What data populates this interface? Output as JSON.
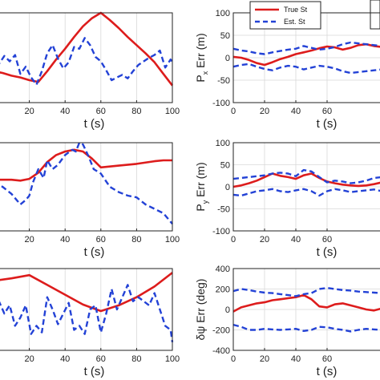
{
  "chart_data": [
    {
      "type": "line",
      "panel": "left-top",
      "xlabel": "t (s)",
      "ylabel": "",
      "xlim": [
        0,
        100
      ],
      "ylim": [
        0,
        10
      ],
      "xticks": [
        20,
        40,
        60,
        80,
        100
      ],
      "grid": true,
      "legend_position": "top-right",
      "series": [
        {
          "name": "True St",
          "color": "#dd1c1c",
          "style": "solid",
          "x": [
            0,
            5,
            10,
            15,
            20,
            25,
            30,
            35,
            40,
            45,
            50,
            55,
            60,
            65,
            70,
            75,
            80,
            85,
            90,
            95,
            100
          ],
          "y": [
            3.5,
            3.3,
            3.0,
            2.8,
            2.5,
            2.3,
            3.5,
            4.8,
            6.0,
            7.3,
            8.5,
            9.4,
            10.0,
            9.2,
            8.3,
            7.3,
            6.4,
            5.5,
            4.5,
            3.2,
            1.9
          ]
        },
        {
          "name": "Est. St",
          "color": "#2342d6",
          "style": "dashed",
          "x": [
            0,
            3,
            6,
            9,
            12,
            15,
            18,
            21,
            24,
            27,
            30,
            33,
            36,
            39,
            42,
            45,
            48,
            51,
            54,
            57,
            60,
            63,
            66,
            69,
            72,
            75,
            78,
            81,
            84,
            87,
            90,
            93,
            96,
            99,
            100
          ],
          "y": [
            3.0,
            4.3,
            5.2,
            4.6,
            5.3,
            3.2,
            4.0,
            2.8,
            2.0,
            3.5,
            5.5,
            6.4,
            4.9,
            3.8,
            4.5,
            6.2,
            6.0,
            7.2,
            6.4,
            5.1,
            4.6,
            3.6,
            2.5,
            2.8,
            3.1,
            2.7,
            3.5,
            4.2,
            4.6,
            5.0,
            5.3,
            5.8,
            3.9,
            4.8,
            4.5
          ]
        }
      ]
    },
    {
      "type": "line",
      "panel": "right-top",
      "xlabel": "t (s)",
      "ylabel": "P_x Err (m)",
      "xlim": [
        0,
        100
      ],
      "ylim": [
        -100,
        100
      ],
      "xticks": [
        0,
        20,
        40,
        60
      ],
      "yticks": [
        100,
        50,
        0,
        -50,
        -100
      ],
      "grid": true,
      "series": [
        {
          "color": "#dd1c1c",
          "style": "solid",
          "x": [
            0,
            5,
            10,
            15,
            20,
            25,
            30,
            35,
            40,
            45,
            50,
            55,
            60,
            65,
            70,
            75,
            80,
            85,
            90,
            95,
            100
          ],
          "y": [
            2,
            0,
            -5,
            -12,
            -16,
            -10,
            -3,
            2,
            8,
            12,
            16,
            21,
            25,
            23,
            18,
            22,
            28,
            30,
            26,
            24,
            28
          ]
        },
        {
          "color": "#2342d6",
          "style": "dashed",
          "x": [
            0,
            5,
            10,
            15,
            20,
            25,
            30,
            35,
            40,
            45,
            50,
            55,
            60,
            65,
            70,
            75,
            80,
            85,
            90,
            95,
            100
          ],
          "y": [
            20,
            16,
            14,
            10,
            8,
            12,
            15,
            18,
            20,
            26,
            22,
            18,
            20,
            24,
            30,
            34,
            32,
            30,
            28,
            26,
            30
          ]
        },
        {
          "color": "#2342d6",
          "style": "dashed",
          "x": [
            0,
            5,
            10,
            15,
            20,
            25,
            30,
            35,
            40,
            45,
            50,
            55,
            60,
            65,
            70,
            75,
            80,
            85,
            90,
            95,
            100
          ],
          "y": [
            -20,
            -16,
            -14,
            -20,
            -25,
            -28,
            -22,
            -18,
            -20,
            -26,
            -22,
            -18,
            -20,
            -24,
            -30,
            -34,
            -32,
            -30,
            -28,
            -26,
            -30
          ]
        }
      ]
    },
    {
      "type": "line",
      "panel": "left-middle",
      "xlabel": "t (s)",
      "ylabel": "",
      "xlim": [
        0,
        100
      ],
      "ylim": [
        0,
        10
      ],
      "xticks": [
        20,
        40,
        60,
        80,
        100
      ],
      "grid": true,
      "series": [
        {
          "color": "#dd1c1c",
          "style": "solid",
          "x": [
            0,
            10,
            15,
            20,
            25,
            30,
            35,
            40,
            45,
            50,
            55,
            60,
            70,
            80,
            90,
            95,
            100
          ],
          "y": [
            5.8,
            5.8,
            5.7,
            5.9,
            6.6,
            7.8,
            8.6,
            9.0,
            9.2,
            9.0,
            8.2,
            7.2,
            7.4,
            7.6,
            7.9,
            8.0,
            8.0
          ]
        },
        {
          "color": "#2342d6",
          "style": "dashed",
          "x": [
            0,
            5,
            10,
            15,
            18,
            20,
            22,
            25,
            28,
            30,
            33,
            36,
            40,
            44,
            46,
            48,
            50,
            53,
            56,
            60,
            65,
            70,
            75,
            80,
            85,
            90,
            95,
            100
          ],
          "y": [
            5.5,
            5.0,
            4.2,
            3.0,
            3.5,
            4.0,
            5.5,
            7.0,
            6.0,
            8.0,
            7.0,
            7.5,
            8.6,
            9.2,
            9.0,
            10.0,
            9.8,
            8.5,
            7.0,
            6.5,
            5.0,
            4.4,
            4.0,
            3.8,
            3.0,
            2.5,
            2.0,
            0.8
          ]
        }
      ]
    },
    {
      "type": "line",
      "panel": "right-middle",
      "xlabel": "t (s)",
      "ylabel": "P_y Err (m)",
      "xlim": [
        0,
        100
      ],
      "ylim": [
        -100,
        100
      ],
      "xticks": [
        0,
        20,
        40,
        60
      ],
      "yticks": [
        100,
        50,
        0,
        -50,
        -100
      ],
      "grid": true,
      "series": [
        {
          "color": "#dd1c1c",
          "style": "solid",
          "x": [
            0,
            5,
            10,
            15,
            20,
            25,
            30,
            35,
            40,
            45,
            50,
            55,
            60,
            65,
            70,
            75,
            80,
            85,
            90,
            95,
            100
          ],
          "y": [
            0,
            3,
            8,
            14,
            22,
            30,
            25,
            22,
            18,
            26,
            30,
            20,
            12,
            8,
            5,
            3,
            2,
            3,
            6,
            10,
            14
          ]
        },
        {
          "color": "#2342d6",
          "style": "dashed",
          "x": [
            0,
            5,
            10,
            15,
            20,
            25,
            30,
            35,
            40,
            45,
            50,
            55,
            60,
            65,
            70,
            75,
            80,
            85,
            90,
            95,
            100
          ],
          "y": [
            18,
            20,
            22,
            24,
            26,
            30,
            32,
            30,
            24,
            38,
            35,
            22,
            10,
            14,
            12,
            8,
            10,
            14,
            20,
            22,
            24
          ]
        },
        {
          "color": "#2342d6",
          "style": "dashed",
          "x": [
            0,
            5,
            10,
            15,
            20,
            25,
            30,
            35,
            40,
            45,
            50,
            55,
            60,
            65,
            70,
            75,
            80,
            85,
            90,
            95,
            100
          ],
          "y": [
            -18,
            -20,
            -15,
            -10,
            -8,
            -5,
            -10,
            -12,
            -8,
            -5,
            -10,
            -20,
            -10,
            -5,
            -8,
            -12,
            -10,
            -8,
            -6,
            -10,
            -12
          ]
        }
      ]
    },
    {
      "type": "line",
      "panel": "left-bottom",
      "xlabel": "t (s)",
      "ylabel": "",
      "xlim": [
        0,
        100
      ],
      "ylim": [
        0,
        10
      ],
      "xticks": [
        20,
        40,
        60,
        80,
        100
      ],
      "grid": true,
      "series": [
        {
          "color": "#dd1c1c",
          "style": "solid",
          "x": [
            0,
            10,
            20,
            30,
            40,
            50,
            60,
            70,
            80,
            90,
            100
          ],
          "y": [
            8.5,
            8.8,
            9.2,
            8.0,
            6.8,
            5.6,
            4.8,
            5.5,
            6.5,
            7.8,
            9.5
          ]
        },
        {
          "color": "#2342d6",
          "style": "dashed",
          "x": [
            0,
            3,
            6,
            9,
            12,
            15,
            18,
            21,
            24,
            27,
            30,
            33,
            36,
            39,
            42,
            45,
            48,
            51,
            54,
            57,
            60,
            63,
            66,
            69,
            72,
            75,
            78,
            81,
            84,
            87,
            90,
            93,
            96,
            99,
            100
          ],
          "y": [
            7.0,
            6.0,
            4.5,
            5.5,
            3.0,
            4.0,
            5.5,
            2.0,
            3.0,
            2.2,
            6.5,
            5.0,
            3.2,
            4.5,
            5.8,
            2.5,
            3.0,
            2.0,
            5.0,
            5.5,
            2.2,
            4.5,
            7.5,
            5.0,
            6.5,
            8.0,
            6.0,
            6.5,
            6.0,
            5.5,
            7.0,
            5.0,
            3.0,
            2.5,
            1.0
          ]
        }
      ]
    },
    {
      "type": "line",
      "panel": "right-bottom",
      "xlabel": "t (s)",
      "ylabel": "δψ Err (deg)",
      "xlim": [
        0,
        100
      ],
      "ylim": [
        -400,
        400
      ],
      "xticks": [
        0,
        20,
        40,
        60
      ],
      "yticks": [
        400,
        200,
        0,
        -200,
        -400
      ],
      "grid": true,
      "series": [
        {
          "color": "#dd1c1c",
          "style": "solid",
          "x": [
            0,
            5,
            10,
            15,
            20,
            25,
            30,
            35,
            40,
            45,
            50,
            55,
            60,
            65,
            70,
            75,
            80,
            85,
            90,
            95,
            100
          ],
          "y": [
            -20,
            20,
            40,
            60,
            70,
            90,
            100,
            110,
            120,
            140,
            100,
            30,
            20,
            50,
            60,
            40,
            20,
            0,
            -10,
            10,
            -20
          ]
        },
        {
          "color": "#2342d6",
          "style": "dashed",
          "x": [
            0,
            5,
            10,
            15,
            20,
            25,
            30,
            35,
            40,
            45,
            50,
            55,
            60,
            65,
            70,
            75,
            80,
            85,
            90,
            95,
            100
          ],
          "y": [
            180,
            200,
            190,
            175,
            165,
            160,
            150,
            140,
            130,
            150,
            160,
            200,
            210,
            200,
            190,
            185,
            175,
            170,
            165,
            160,
            158
          ]
        },
        {
          "color": "#2342d6",
          "style": "dashed",
          "x": [
            0,
            5,
            10,
            15,
            20,
            25,
            30,
            35,
            40,
            45,
            50,
            55,
            60,
            65,
            70,
            75,
            80,
            85,
            90,
            95,
            100
          ],
          "y": [
            -150,
            -170,
            -200,
            -200,
            -190,
            -195,
            -200,
            -195,
            -190,
            -210,
            -200,
            -170,
            -175,
            -190,
            -200,
            -215,
            -200,
            -190,
            -195,
            -200,
            -190
          ]
        }
      ]
    }
  ],
  "legend": {
    "entries": [
      {
        "label": "True St",
        "color": "#dd1c1c",
        "style": "solid"
      },
      {
        "label": "Est. St",
        "color": "#2342d6",
        "style": "dashed"
      }
    ]
  }
}
